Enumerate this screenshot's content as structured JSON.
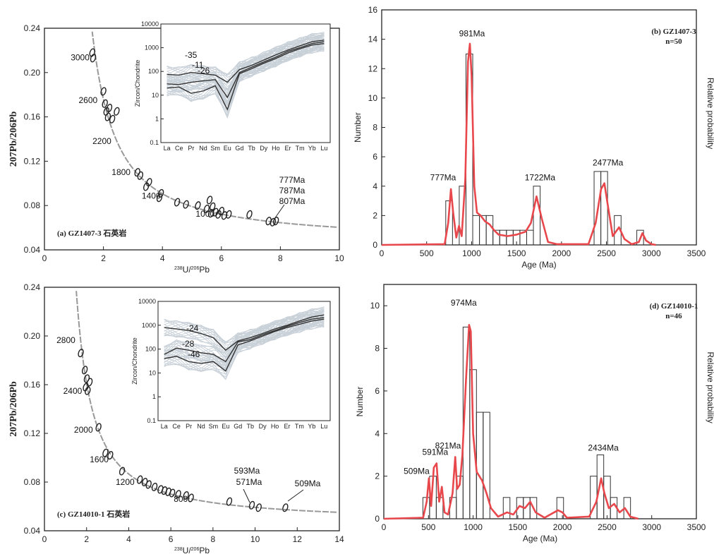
{
  "colors": {
    "kde": "#e8474c",
    "axis": "#222222",
    "ellipse": "#222222",
    "ree_bg": "#c8d0d8",
    "concordia": "#999999"
  },
  "chart_data": [
    {
      "id": "a",
      "type": "scatter",
      "title": "(a) GZ1407-3 石英岩",
      "xlabel_parts": [
        "238",
        "U/",
        "206",
        "Pb"
      ],
      "ylabel": "207Pb/206Pb",
      "xlim": [
        0,
        10
      ],
      "ylim": [
        0.04,
        0.24
      ],
      "xticks": [
        "0",
        "2",
        "4",
        "6",
        "8",
        "10"
      ],
      "yticks": [
        "0.04",
        "0.08",
        "0.12",
        "0.16",
        "0.20",
        "0.24"
      ],
      "concordia_labels": [
        {
          "text": "3000",
          "x": 1.72,
          "y": 0.2135
        },
        {
          "text": "2600",
          "x": 1.99,
          "y": 0.175
        },
        {
          "text": "2200",
          "x": 2.46,
          "y": 0.138
        },
        {
          "text": "1800",
          "x": 3.11,
          "y": 0.11
        },
        {
          "text": "1400",
          "x": 4.13,
          "y": 0.0887
        },
        {
          "text": "1000",
          "x": 5.96,
          "y": 0.0725
        }
      ],
      "annotation": [
        "777Ma",
        "787Ma",
        "807Ma"
      ],
      "points": [
        {
          "x": 1.65,
          "y": 0.213
        },
        {
          "x": 1.62,
          "y": 0.218
        },
        {
          "x": 2.0,
          "y": 0.183
        },
        {
          "x": 2.05,
          "y": 0.172
        },
        {
          "x": 2.1,
          "y": 0.165
        },
        {
          "x": 2.2,
          "y": 0.168
        },
        {
          "x": 2.3,
          "y": 0.158
        },
        {
          "x": 2.45,
          "y": 0.165
        },
        {
          "x": 2.15,
          "y": 0.16
        },
        {
          "x": 3.15,
          "y": 0.11
        },
        {
          "x": 3.25,
          "y": 0.107
        },
        {
          "x": 3.55,
          "y": 0.101
        },
        {
          "x": 3.45,
          "y": 0.097
        },
        {
          "x": 3.95,
          "y": 0.091
        },
        {
          "x": 3.9,
          "y": 0.087
        },
        {
          "x": 4.5,
          "y": 0.083
        },
        {
          "x": 4.8,
          "y": 0.081
        },
        {
          "x": 5.2,
          "y": 0.08
        },
        {
          "x": 5.5,
          "y": 0.077
        },
        {
          "x": 5.6,
          "y": 0.085
        },
        {
          "x": 5.7,
          "y": 0.079
        },
        {
          "x": 5.8,
          "y": 0.074
        },
        {
          "x": 5.9,
          "y": 0.072
        },
        {
          "x": 6.0,
          "y": 0.075
        },
        {
          "x": 6.1,
          "y": 0.071
        },
        {
          "x": 6.25,
          "y": 0.072
        },
        {
          "x": 5.65,
          "y": 0.073
        },
        {
          "x": 6.95,
          "y": 0.072
        },
        {
          "x": 7.6,
          "y": 0.066
        },
        {
          "x": 7.75,
          "y": 0.065
        },
        {
          "x": 7.85,
          "y": 0.066
        }
      ],
      "inset": {
        "ylabel": "Zircon/Chondrite",
        "elements": [
          "La",
          "Ce",
          "Pr",
          "Nd",
          "Sm",
          "Eu",
          "Gd",
          "Tb",
          "Dy",
          "Ho",
          "Er",
          "Tm",
          "Yb",
          "Lu"
        ],
        "yticks": [
          "0.1",
          "1",
          "10",
          "100",
          "1000",
          "10000"
        ],
        "labels": [
          "-35",
          "-11",
          "-26"
        ],
        "lines": [
          [
            75,
            70,
            90,
            80,
            70,
            35,
            120,
            180,
            300,
            500,
            800,
            1200,
            1800,
            2100
          ],
          [
            30,
            28,
            35,
            40,
            45,
            8,
            90,
            150,
            250,
            400,
            700,
            1000,
            1500,
            1800
          ],
          [
            20,
            22,
            12,
            15,
            25,
            2.5,
            80,
            130,
            220,
            350,
            600,
            900,
            1300,
            1500
          ]
        ]
      }
    },
    {
      "id": "b",
      "type": "bar",
      "title": "(b) GZ1407-3",
      "n_label": "n=50",
      "xlabel": "Age (Ma)",
      "ylabel": "Number",
      "right_label": "Relative probability",
      "xlim": [
        0,
        3500
      ],
      "ylim": [
        0,
        16
      ],
      "xticks": [
        "0",
        "500",
        "1000",
        "1500",
        "2000",
        "2500",
        "3000",
        "3500"
      ],
      "yticks": [
        "0",
        "2",
        "4",
        "6",
        "8",
        "10",
        "12",
        "14",
        "16"
      ],
      "peaks": [
        {
          "label": "981Ma",
          "x": 981
        },
        {
          "label": "777Ma",
          "x": 777
        },
        {
          "label": "1722Ma",
          "x": 1722
        },
        {
          "label": "2477Ma",
          "x": 2477
        }
      ],
      "bin_width": 75,
      "bins": [
        {
          "x": 750,
          "v": 3
        },
        {
          "x": 900,
          "v": 4
        },
        {
          "x": 975,
          "v": 13
        },
        {
          "x": 1050,
          "v": 2
        },
        {
          "x": 1125,
          "v": 2
        },
        {
          "x": 1200,
          "v": 2
        },
        {
          "x": 1275,
          "v": 1
        },
        {
          "x": 1350,
          "v": 1
        },
        {
          "x": 1425,
          "v": 1
        },
        {
          "x": 1500,
          "v": 1
        },
        {
          "x": 1575,
          "v": 1
        },
        {
          "x": 1650,
          "v": 1
        },
        {
          "x": 1725,
          "v": 4
        },
        {
          "x": 2400,
          "v": 5
        },
        {
          "x": 2475,
          "v": 5
        },
        {
          "x": 2625,
          "v": 2
        },
        {
          "x": 2875,
          "v": 1
        }
      ],
      "curve": [
        [
          0,
          0
        ],
        [
          700,
          0.05
        ],
        [
          740,
          1.5
        ],
        [
          770,
          3.8
        ],
        [
          795,
          2.2
        ],
        [
          830,
          0.5
        ],
        [
          860,
          1.3
        ],
        [
          890,
          0.6
        ],
        [
          930,
          4.5
        ],
        [
          960,
          12.5
        ],
        [
          981,
          13.7
        ],
        [
          1000,
          11.5
        ],
        [
          1030,
          4
        ],
        [
          1060,
          2.2
        ],
        [
          1100,
          2
        ],
        [
          1150,
          1.6
        ],
        [
          1200,
          1.4
        ],
        [
          1250,
          1
        ],
        [
          1300,
          0.7
        ],
        [
          1400,
          0.6
        ],
        [
          1500,
          0.7
        ],
        [
          1600,
          0.9
        ],
        [
          1660,
          1.5
        ],
        [
          1722,
          3.3
        ],
        [
          1780,
          1.8
        ],
        [
          1850,
          0.2
        ],
        [
          1950,
          0.05
        ],
        [
          2300,
          0.05
        ],
        [
          2380,
          1.5
        ],
        [
          2440,
          3.8
        ],
        [
          2477,
          4.2
        ],
        [
          2520,
          2.5
        ],
        [
          2570,
          0.6
        ],
        [
          2640,
          1.2
        ],
        [
          2700,
          0.4
        ],
        [
          2780,
          0.05
        ],
        [
          2860,
          0.2
        ],
        [
          2900,
          0.8
        ],
        [
          2940,
          0.3
        ],
        [
          3000,
          0.05
        ],
        [
          3050,
          0
        ]
      ]
    },
    {
      "id": "c",
      "type": "scatter",
      "title": "(c) GZ14010-1 石英岩",
      "xlabel_parts": [
        "238",
        "U/",
        "206",
        "Pb"
      ],
      "ylabel": "207Pb/206Pb",
      "xlim": [
        0,
        15
      ],
      "ylim": [
        0.04,
        0.24
      ],
      "xticks": [
        "0",
        "2",
        "4",
        "6",
        "8",
        "10",
        "12",
        "14"
      ],
      "yticks": [
        "0.04",
        "0.08",
        "0.12",
        "0.16",
        "0.20",
        "0.24"
      ],
      "concordia_labels": [
        {
          "text": "2800",
          "x": 1.86,
          "y": 0.1966
        },
        {
          "text": "2400",
          "x": 2.2,
          "y": 0.1547
        },
        {
          "text": "2000",
          "x": 2.75,
          "y": 0.123
        },
        {
          "text": "1600",
          "x": 3.55,
          "y": 0.0986
        },
        {
          "text": "1200",
          "x": 4.87,
          "y": 0.0801
        },
        {
          "text": "800",
          "x": 7.58,
          "y": 0.066
        }
      ],
      "annotation": [
        "593Ma",
        "571Ma",
        "509Ma"
      ],
      "points": [
        {
          "x": 1.85,
          "y": 0.186
        },
        {
          "x": 2.05,
          "y": 0.172
        },
        {
          "x": 2.15,
          "y": 0.165
        },
        {
          "x": 2.1,
          "y": 0.158
        },
        {
          "x": 2.3,
          "y": 0.162
        },
        {
          "x": 2.2,
          "y": 0.155
        },
        {
          "x": 2.75,
          "y": 0.125
        },
        {
          "x": 3.1,
          "y": 0.104
        },
        {
          "x": 3.35,
          "y": 0.102
        },
        {
          "x": 3.95,
          "y": 0.089
        },
        {
          "x": 4.85,
          "y": 0.082
        },
        {
          "x": 5.1,
          "y": 0.08
        },
        {
          "x": 5.3,
          "y": 0.078
        },
        {
          "x": 5.6,
          "y": 0.076
        },
        {
          "x": 5.9,
          "y": 0.074
        },
        {
          "x": 6.1,
          "y": 0.073
        },
        {
          "x": 6.3,
          "y": 0.072
        },
        {
          "x": 6.5,
          "y": 0.071
        },
        {
          "x": 6.8,
          "y": 0.07
        },
        {
          "x": 7.2,
          "y": 0.069
        },
        {
          "x": 7.45,
          "y": 0.067
        },
        {
          "x": 9.4,
          "y": 0.064
        },
        {
          "x": 10.55,
          "y": 0.061
        },
        {
          "x": 10.9,
          "y": 0.059
        },
        {
          "x": 12.25,
          "y": 0.059
        }
      ],
      "inset": {
        "ylabel": "Zircon/Chondrite",
        "elements": [
          "La",
          "Ce",
          "Pr",
          "Nd",
          "Sm",
          "Eu",
          "Gd",
          "Tb",
          "Dy",
          "Ho",
          "Er",
          "Tm",
          "Yb",
          "Lu"
        ],
        "yticks": [
          "0.1",
          "1",
          "10",
          "100",
          "1000",
          "10000"
        ],
        "labels": [
          "-24",
          "-28",
          "-46"
        ],
        "lines": [
          [
            800,
            700,
            600,
            450,
            300,
            90,
            220,
            300,
            450,
            700,
            1000,
            1500,
            2200,
            2700
          ],
          [
            60,
            110,
            90,
            70,
            60,
            30,
            200,
            250,
            400,
            600,
            900,
            1300,
            1800,
            2100
          ],
          [
            40,
            50,
            30,
            25,
            30,
            12,
            150,
            220,
            350,
            550,
            800,
            1100,
            1500,
            1800
          ]
        ]
      }
    },
    {
      "id": "d",
      "type": "bar",
      "title": "(d) GZ14010-1",
      "n_label": "n=46",
      "xlabel": "Age (Ma)",
      "ylabel": "Number",
      "right_label": "Relative probability",
      "xlim": [
        0,
        3500
      ],
      "ylim": [
        0,
        11
      ],
      "xticks": [
        "0",
        "500",
        "1000",
        "1500",
        "2000",
        "2500",
        "3000",
        "3500"
      ],
      "yticks": [
        "0",
        "2",
        "4",
        "6",
        "8",
        "10"
      ],
      "peaks": [
        {
          "label": "974Ma",
          "x": 974
        },
        {
          "label": "591Ma",
          "x": 591
        },
        {
          "label": "821Ma",
          "x": 821
        },
        {
          "label": "509Ma",
          "x": 509
        },
        {
          "label": "2434Ma",
          "x": 2434
        }
      ],
      "bin_width": 75,
      "bins": [
        {
          "x": 475,
          "v": 1
        },
        {
          "x": 550,
          "v": 2
        },
        {
          "x": 625,
          "v": 1
        },
        {
          "x": 775,
          "v": 1
        },
        {
          "x": 850,
          "v": 2
        },
        {
          "x": 925,
          "v": 9
        },
        {
          "x": 1000,
          "v": 7
        },
        {
          "x": 1075,
          "v": 5
        },
        {
          "x": 1150,
          "v": 5
        },
        {
          "x": 1375,
          "v": 1
        },
        {
          "x": 1525,
          "v": 1
        },
        {
          "x": 1600,
          "v": 1
        },
        {
          "x": 1675,
          "v": 1
        },
        {
          "x": 1975,
          "v": 1
        },
        {
          "x": 2350,
          "v": 2
        },
        {
          "x": 2425,
          "v": 3
        },
        {
          "x": 2500,
          "v": 2
        },
        {
          "x": 2575,
          "v": 1
        },
        {
          "x": 2725,
          "v": 1
        }
      ],
      "curve": [
        [
          0,
          0
        ],
        [
          440,
          0.05
        ],
        [
          480,
          0.8
        ],
        [
          505,
          1.9
        ],
        [
          530,
          0.6
        ],
        [
          560,
          2.4
        ],
        [
          591,
          2.6
        ],
        [
          620,
          0.8
        ],
        [
          650,
          1.5
        ],
        [
          680,
          0.3
        ],
        [
          720,
          0.2
        ],
        [
          770,
          1.2
        ],
        [
          800,
          2.9
        ],
        [
          821,
          1.4
        ],
        [
          850,
          1.6
        ],
        [
          880,
          3
        ],
        [
          920,
          6.5
        ],
        [
          955,
          9.1
        ],
        [
          974,
          8.8
        ],
        [
          1000,
          4
        ],
        [
          1040,
          2.2
        ],
        [
          1100,
          1.8
        ],
        [
          1150,
          1.2
        ],
        [
          1200,
          0.5
        ],
        [
          1280,
          0.1
        ],
        [
          1380,
          0.3
        ],
        [
          1450,
          0.2
        ],
        [
          1520,
          0.6
        ],
        [
          1580,
          0.5
        ],
        [
          1640,
          0.8
        ],
        [
          1700,
          0.3
        ],
        [
          1800,
          0.05
        ],
        [
          1950,
          0.4
        ],
        [
          2000,
          0.3
        ],
        [
          2050,
          0.05
        ],
        [
          2300,
          0.1
        ],
        [
          2380,
          0.8
        ],
        [
          2434,
          1.9
        ],
        [
          2470,
          1.2
        ],
        [
          2520,
          0.5
        ],
        [
          2580,
          0.7
        ],
        [
          2640,
          0.3
        ],
        [
          2700,
          0.5
        ],
        [
          2760,
          0.1
        ],
        [
          2850,
          0
        ]
      ]
    }
  ]
}
